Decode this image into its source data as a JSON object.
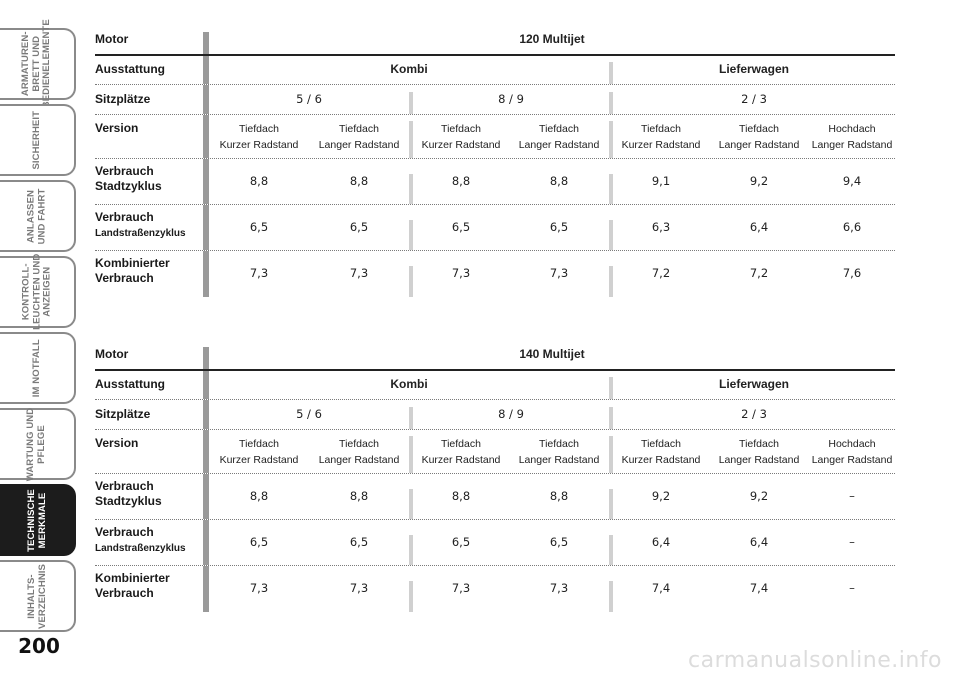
{
  "sidebar": {
    "tabs": [
      {
        "label": "ARMATUREN-\nBRETT UND\nBEDIENELEMENTE",
        "active": false
      },
      {
        "label": "SICHERHEIT",
        "active": false
      },
      {
        "label": "ANLASSEN\nUND FAHRT",
        "active": false
      },
      {
        "label": "KONTROLL-\nLEUCHTEN UND\nANZEIGEN",
        "active": false
      },
      {
        "label": "IM NOTFALL",
        "active": false
      },
      {
        "label": "WARTUNG UND\nPFLEGE",
        "active": false
      },
      {
        "label": "TECHNISCHE\nMERKMALE",
        "active": true
      },
      {
        "label": "INHALTS-\nVERZEICHNIS",
        "active": false
      }
    ],
    "page_number": "200"
  },
  "tables": [
    {
      "motor_label": "Motor",
      "motor_value": "120 Multijet",
      "ausstattung_label": "Ausstattung",
      "ausstattung": [
        "Kombi",
        "Lieferwagen"
      ],
      "sitzplaetze_label": "Sitzplätze",
      "sitzplaetze": [
        "5 / 6",
        "8 / 9",
        "2 / 3"
      ],
      "version_label": "Version",
      "versions": [
        [
          "Tiefdach",
          "Kurzer Radstand"
        ],
        [
          "Tiefdach",
          "Langer Radstand"
        ],
        [
          "Tiefdach",
          "Kurzer Radstand"
        ],
        [
          "Tiefdach",
          "Langer Radstand"
        ],
        [
          "Tiefdach",
          "Kurzer Radstand"
        ],
        [
          "Tiefdach",
          "Langer Radstand"
        ],
        [
          "Hochdach",
          "Langer Radstand"
        ]
      ],
      "stadt_label": [
        "Verbrauch",
        "Stadtzyklus"
      ],
      "stadt": [
        "8,8",
        "8,8",
        "8,8",
        "8,8",
        "9,1",
        "9,2",
        "9,4"
      ],
      "land_label": [
        "Verbrauch",
        "Landstraßenzyklus"
      ],
      "land": [
        "6,5",
        "6,5",
        "6,5",
        "6,5",
        "6,3",
        "6,4",
        "6,6"
      ],
      "komb_label": [
        "Kombinierter",
        "Verbrauch"
      ],
      "komb": [
        "7,3",
        "7,3",
        "7,3",
        "7,3",
        "7,2",
        "7,2",
        "7,6"
      ]
    },
    {
      "motor_label": "Motor",
      "motor_value": "140 Multijet",
      "ausstattung_label": "Ausstattung",
      "ausstattung": [
        "Kombi",
        "Lieferwagen"
      ],
      "sitzplaetze_label": "Sitzplätze",
      "sitzplaetze": [
        "5 / 6",
        "8 / 9",
        "2 / 3"
      ],
      "version_label": "Version",
      "versions": [
        [
          "Tiefdach",
          "Kurzer Radstand"
        ],
        [
          "Tiefdach",
          "Langer Radstand"
        ],
        [
          "Tiefdach",
          "Kurzer Radstand"
        ],
        [
          "Tiefdach",
          "Langer Radstand"
        ],
        [
          "Tiefdach",
          "Kurzer Radstand"
        ],
        [
          "Tiefdach",
          "Langer Radstand"
        ],
        [
          "Hochdach",
          "Langer Radstand"
        ]
      ],
      "stadt_label": [
        "Verbrauch",
        "Stadtzyklus"
      ],
      "stadt": [
        "8,8",
        "8,8",
        "8,8",
        "8,8",
        "9,2",
        "9,2",
        "–"
      ],
      "land_label": [
        "Verbrauch",
        "Landstraßenzyklus"
      ],
      "land": [
        "6,5",
        "6,5",
        "6,5",
        "6,5",
        "6,4",
        "6,4",
        "–"
      ],
      "komb_label": [
        "Kombinierter",
        "Verbrauch"
      ],
      "komb": [
        "7,3",
        "7,3",
        "7,3",
        "7,3",
        "7,4",
        "7,4",
        "–"
      ]
    }
  ],
  "watermark": "carmanualsonline.info"
}
